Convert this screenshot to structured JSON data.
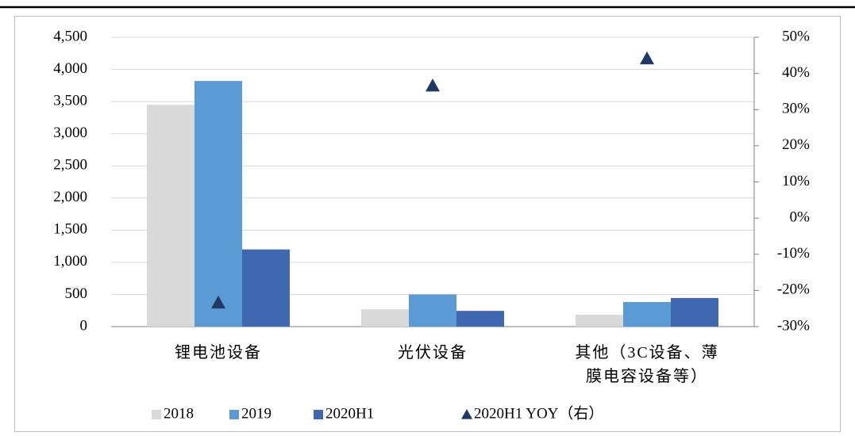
{
  "chart_data": {
    "type": "bar",
    "categories": [
      "锂电池设备",
      "光伏设备",
      "其他（3C设备、薄膜电容设备等）"
    ],
    "series": [
      {
        "name": "2018",
        "color": "#d9d9d9",
        "values": [
          3450,
          270,
          185
        ]
      },
      {
        "name": "2019",
        "color": "#5b9bd5",
        "values": [
          3820,
          500,
          382
        ]
      },
      {
        "name": "2020H1",
        "color": "#4068b0",
        "values": [
          1200,
          245,
          445
        ]
      },
      {
        "name": "2020H1 YOY（右）",
        "color": "#1f3864",
        "type": "scatter",
        "axis": "y2",
        "values": [
          -23.4,
          36.6,
          44.1
        ]
      }
    ],
    "ylim": [
      0,
      4500
    ],
    "yticks": [
      0,
      500,
      {
        "value": 1000,
        "label": "1,000"
      },
      {
        "value": 1500,
        "label": "1,500"
      },
      {
        "value": 2000,
        "label": "2,000"
      },
      {
        "value": 2500,
        "label": "2,500"
      },
      {
        "value": 3000,
        "label": "3,000"
      },
      {
        "value": 3500,
        "label": "3,500"
      },
      {
        "value": 4000,
        "label": "4,000"
      },
      {
        "value": 4500,
        "label": "4,500"
      }
    ],
    "y2lim": [
      -30,
      50
    ],
    "y2ticks": [
      {
        "value": -30,
        "label": "-30%"
      },
      {
        "value": -20,
        "label": "-20%"
      },
      {
        "value": -10,
        "label": "-10%"
      },
      {
        "value": 0,
        "label": "0%"
      },
      {
        "value": 10,
        "label": "10%"
      },
      {
        "value": 20,
        "label": "20%"
      },
      {
        "value": 30,
        "label": "30%"
      },
      {
        "value": 40,
        "label": "40%"
      },
      {
        "value": 50,
        "label": "50%"
      }
    ],
    "grid": true,
    "legend": "bottom"
  }
}
